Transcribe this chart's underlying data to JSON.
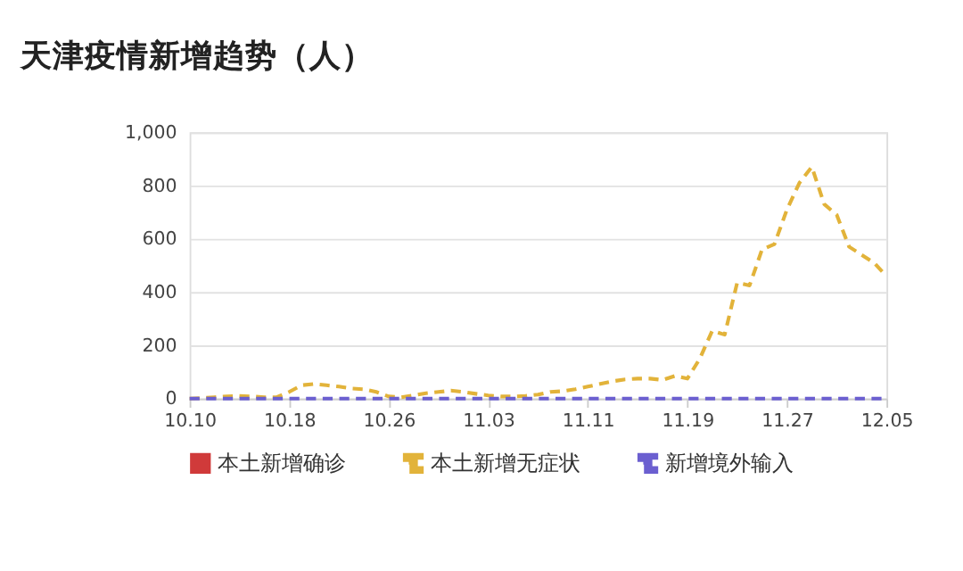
{
  "chart_data": {
    "type": "line",
    "title": "天津疫情新增趋势（人）",
    "categories": [
      "10.10",
      null,
      null,
      null,
      null,
      null,
      null,
      null,
      "10.18",
      null,
      null,
      null,
      null,
      null,
      null,
      null,
      "10.26",
      null,
      null,
      null,
      null,
      null,
      null,
      null,
      "11.03",
      null,
      null,
      null,
      null,
      null,
      null,
      null,
      "11.11",
      null,
      null,
      null,
      null,
      null,
      null,
      null,
      "11.19",
      null,
      null,
      null,
      null,
      null,
      null,
      null,
      "11.27",
      null,
      null,
      null,
      null,
      null,
      null,
      null,
      "12.05"
    ],
    "series": [
      {
        "name": "本土新增确诊",
        "color": "#d03a3a",
        "line_style": "solid",
        "values": [
          null,
          null,
          null,
          null,
          null,
          null,
          null,
          null,
          null,
          null,
          null,
          null,
          null,
          null,
          null,
          null,
          null,
          null,
          null,
          null,
          null,
          null,
          null,
          null,
          null,
          null,
          null,
          null,
          null,
          null,
          null,
          null,
          null,
          null,
          null,
          null,
          null,
          null,
          null,
          null,
          null,
          null,
          null,
          null,
          null,
          null,
          null,
          null,
          null,
          null,
          null,
          null,
          null,
          null,
          null,
          null,
          null
        ]
      },
      {
        "name": "本土新增无症状",
        "color": "#e2b33a",
        "line_style": "dashed",
        "values": [
          0,
          2,
          5,
          8,
          10,
          8,
          5,
          5,
          25,
          50,
          55,
          50,
          45,
          38,
          35,
          25,
          8,
          5,
          12,
          20,
          25,
          30,
          25,
          18,
          12,
          8,
          8,
          10,
          15,
          25,
          28,
          35,
          45,
          55,
          65,
          72,
          75,
          75,
          70,
          85,
          75,
          150,
          255,
          240,
          435,
          425,
          560,
          580,
          710,
          810,
          870,
          730,
          690,
          570,
          540,
          510,
          460
        ]
      },
      {
        "name": "新增境外输入",
        "color": "#6b5fd0",
        "line_style": "dashed",
        "values": [
          0,
          0,
          0,
          0,
          0,
          0,
          0,
          0,
          0,
          0,
          0,
          0,
          0,
          0,
          0,
          0,
          0,
          0,
          0,
          0,
          0,
          0,
          0,
          0,
          0,
          0,
          0,
          0,
          0,
          0,
          0,
          0,
          0,
          0,
          0,
          0,
          0,
          0,
          0,
          0,
          0,
          0,
          0,
          0,
          0,
          0,
          0,
          0,
          0,
          0,
          0,
          0,
          0,
          0,
          0,
          0,
          0
        ]
      }
    ],
    "ylim": [
      0,
      1000
    ],
    "yticks": [
      0,
      200,
      400,
      600,
      800,
      {
        "value": 1000,
        "label": "1,000"
      }
    ],
    "grid": "y",
    "legend": "bottom",
    "marker": "none"
  }
}
